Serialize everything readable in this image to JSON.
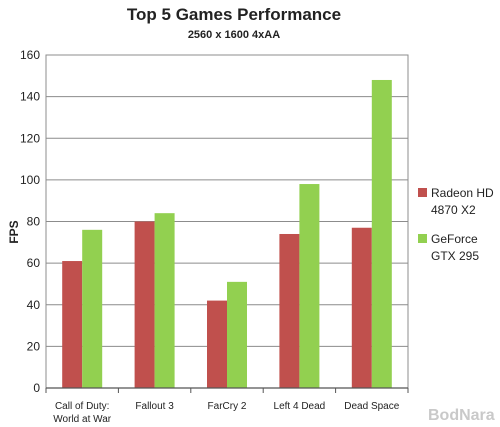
{
  "chart_data": {
    "type": "bar",
    "title": "Top 5 Games Performance",
    "subtitle": "2560 x 1600 4xAA",
    "ylabel": "FPS",
    "xlabel": "",
    "ylim": [
      0,
      160
    ],
    "yticks": [
      0,
      20,
      40,
      60,
      80,
      100,
      120,
      140,
      160
    ],
    "grid": true,
    "legend_position": "right",
    "categories": [
      [
        "Call of Duty:",
        "World at War"
      ],
      [
        "Fallout 3"
      ],
      [
        "FarCry 2"
      ],
      [
        "Left 4 Dead"
      ],
      [
        "Dead Space"
      ]
    ],
    "series": [
      {
        "name": [
          "Radeon HD",
          "4870 X2"
        ],
        "color": "#c0504d",
        "values": [
          61,
          80,
          42,
          74,
          77
        ]
      },
      {
        "name": [
          "GeForce",
          "GTX 295"
        ],
        "color": "#92d050",
        "values": [
          76,
          84,
          51,
          98,
          148
        ]
      }
    ]
  },
  "watermark": "BodNara"
}
